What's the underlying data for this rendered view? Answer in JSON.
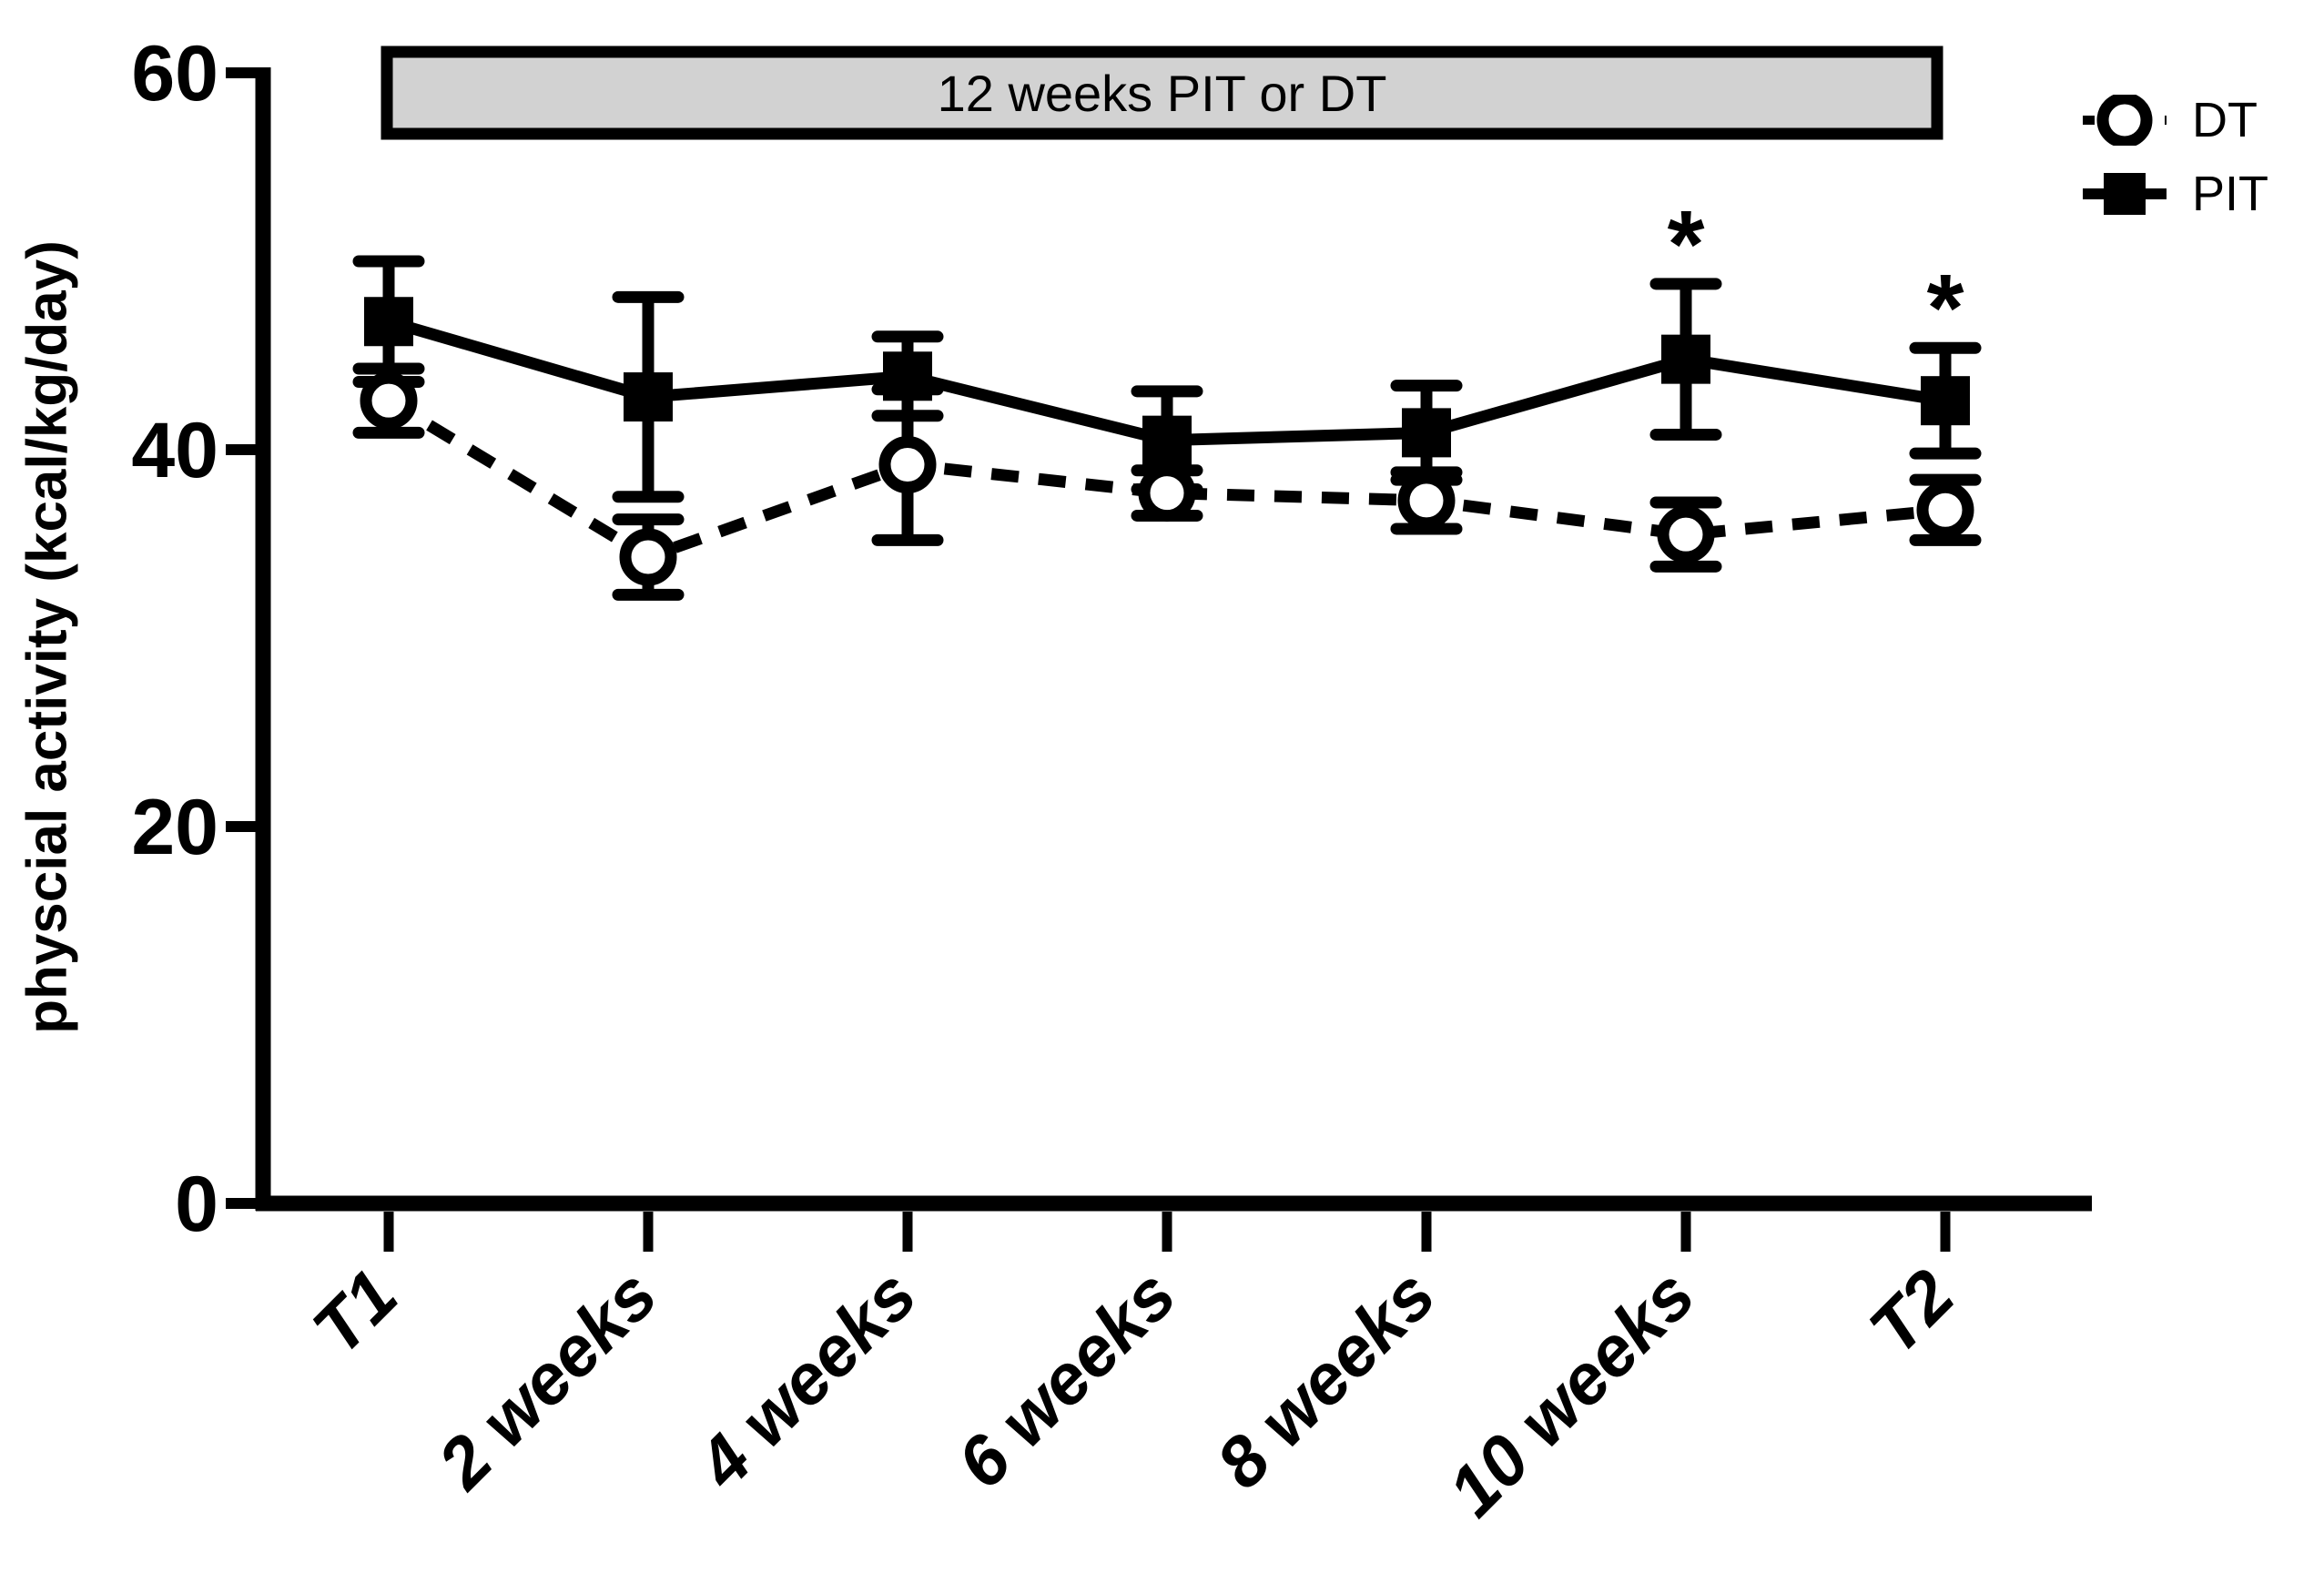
{
  "chart_data": {
    "type": "line",
    "title": "",
    "ylabel": "physcial activity (kcal/kg/day)",
    "xlabel": "",
    "ylim": [
      0,
      60
    ],
    "yticks": [
      0,
      20,
      40,
      60
    ],
    "categories": [
      "T1",
      "2 weeks",
      "4 weeks",
      "6 weeks",
      "8 weeks",
      "10 weeks",
      "T2"
    ],
    "grid": false,
    "legend_position": "top-right",
    "series": [
      {
        "name": "DT",
        "marker": "open-circle",
        "line_style": "dashed",
        "color": "#000000",
        "values": [
          42.6,
          34.3,
          39.2,
          37.7,
          37.3,
          35.5,
          36.8
        ],
        "errors": [
          1.7,
          2.0,
          4.0,
          1.2,
          1.5,
          1.7,
          1.6
        ],
        "significance": [
          "",
          "",
          "",
          "",
          "",
          "",
          ""
        ]
      },
      {
        "name": "PIT",
        "marker": "filled-square",
        "line_style": "solid",
        "color": "#000000",
        "values": [
          46.8,
          42.8,
          43.9,
          40.5,
          40.9,
          44.8,
          42.6
        ],
        "errors": [
          3.2,
          5.3,
          2.1,
          2.6,
          2.5,
          4.0,
          2.8
        ],
        "significance": [
          "",
          "",
          "",
          "",
          "",
          "*",
          "*"
        ]
      }
    ],
    "annotation_bar": {
      "label": "12 weeks PIT or DT",
      "fill": "#d2d2d2",
      "border": "#000000",
      "span": "T1 to T2"
    },
    "colors": {
      "foreground": "#000000",
      "background": "#ffffff"
    }
  }
}
